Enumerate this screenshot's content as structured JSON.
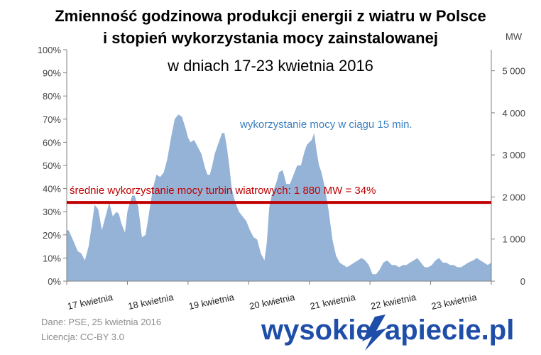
{
  "title": {
    "line1": "Zmienność godzinowa produkcji energii z wiatru w Polsce",
    "line2": "i stopień wykorzystania mocy zainstalowanej",
    "line3": "w dniach 17-23 kwietnia 2016"
  },
  "source": {
    "line1": "Dane: PSE, 25 kwietnia 2016",
    "line2": "Licencja: CC-BY 3.0"
  },
  "logo": {
    "left": "wysokie",
    "right": "apiecie.pl"
  },
  "colors": {
    "area": "#95b3d7",
    "avg_line": "#c00000",
    "logo": "#1f4ea8",
    "annotation_blue": "#3a7fc1"
  },
  "chart_data": {
    "type": "area",
    "title": "Zmienność godzinowa produkcji energii z wiatru w Polsce i stopień wykorzystania mocy zainstalowanej w dniach 17-23 kwietnia 2016",
    "x_labels": [
      "17 kwietnia",
      "18 kwietnia",
      "19 kwietnia",
      "20 kwietnia",
      "21 kwietnia",
      "22 kwietnia",
      "23 kwietnia"
    ],
    "y_left": {
      "ylim": [
        0,
        100
      ],
      "ticks": [
        "0%",
        "10%",
        "20%",
        "30%",
        "40%",
        "50%",
        "60%",
        "70%",
        "80%",
        "90%",
        "100%"
      ]
    },
    "y_right": {
      "unit": "MW",
      "ylim": [
        0,
        5500
      ],
      "tick_values": [
        0,
        1000,
        2000,
        3000,
        4000,
        5000
      ],
      "ticks": [
        "0",
        "1 000",
        "2 000",
        "3 000",
        "4 000",
        "5 000"
      ]
    },
    "series": [
      {
        "name": "wykorzystanie mocy w ciągu 15 min.",
        "x_days": [
          0,
          0.03,
          0.1,
          0.18,
          0.24,
          0.3,
          0.36,
          0.4,
          0.46,
          0.52,
          0.58,
          0.64,
          0.7,
          0.76,
          0.82,
          0.86,
          0.9,
          0.96,
          1.0,
          1.04,
          1.08,
          1.12,
          1.18,
          1.24,
          1.3,
          1.36,
          1.42,
          1.48,
          1.54,
          1.6,
          1.66,
          1.72,
          1.78,
          1.84,
          1.9,
          1.96,
          2.0,
          2.04,
          2.1,
          2.16,
          2.22,
          2.28,
          2.32,
          2.36,
          2.4,
          2.44,
          2.48,
          2.52,
          2.56,
          2.6,
          2.64,
          2.68,
          2.72,
          2.78,
          2.84,
          2.9,
          2.96,
          3.02,
          3.08,
          3.14,
          3.2,
          3.26,
          3.3,
          3.34,
          3.38,
          3.42,
          3.46,
          3.5,
          3.56,
          3.62,
          3.68,
          3.74,
          3.8,
          3.86,
          3.92,
          3.96,
          4.0,
          4.04,
          4.08,
          4.12,
          4.16,
          4.2,
          4.26,
          4.32,
          4.38,
          4.44,
          4.5,
          4.56,
          4.62,
          4.68,
          4.74,
          4.8,
          4.86,
          4.92,
          4.98,
          5.04,
          5.1,
          5.16,
          5.22,
          5.28,
          5.32,
          5.36,
          5.42,
          5.48,
          5.54,
          5.6,
          5.66,
          5.72,
          5.78,
          5.84,
          5.9,
          5.96,
          6.02,
          6.08,
          6.14,
          6.2,
          6.26,
          6.32,
          6.38,
          6.44,
          6.5,
          6.56,
          6.62,
          6.7,
          6.76,
          6.82,
          6.88,
          6.94,
          7.0
        ],
        "values": [
          22,
          22,
          18,
          13,
          12,
          9,
          15,
          22,
          33,
          31,
          22,
          28,
          34,
          28,
          30,
          29,
          25,
          21,
          30,
          34,
          37,
          37,
          32,
          19,
          20,
          30,
          40,
          46,
          45,
          47,
          53,
          62,
          70,
          72,
          71,
          66,
          62,
          60,
          61,
          58,
          55,
          49,
          46,
          46,
          50,
          55,
          58,
          61,
          64,
          64,
          58,
          50,
          40,
          34,
          30,
          28,
          26,
          22,
          19,
          18,
          12,
          9,
          17,
          32,
          37,
          40,
          43,
          47,
          48,
          42,
          42,
          46,
          50,
          50,
          56,
          59,
          60,
          61,
          64,
          56,
          50,
          47,
          40,
          30,
          18,
          11,
          8,
          7,
          6,
          7,
          8,
          9,
          10,
          9,
          7,
          3,
          3,
          5,
          8,
          9,
          8,
          7,
          7,
          6,
          7,
          7,
          8,
          9,
          10,
          8,
          6,
          6,
          7,
          9,
          10,
          8,
          8,
          7,
          7,
          6,
          6,
          7,
          8,
          9,
          10,
          9,
          8,
          7,
          8
        ]
      }
    ],
    "average_line": {
      "value_percent": 34,
      "label": "średnie wykorzystanie mocy turbin wiatrowych: 1 880 MW = 34%"
    },
    "series_label": "wykorzystanie mocy w ciągu 15 min.",
    "grid": false,
    "legend": "none"
  }
}
